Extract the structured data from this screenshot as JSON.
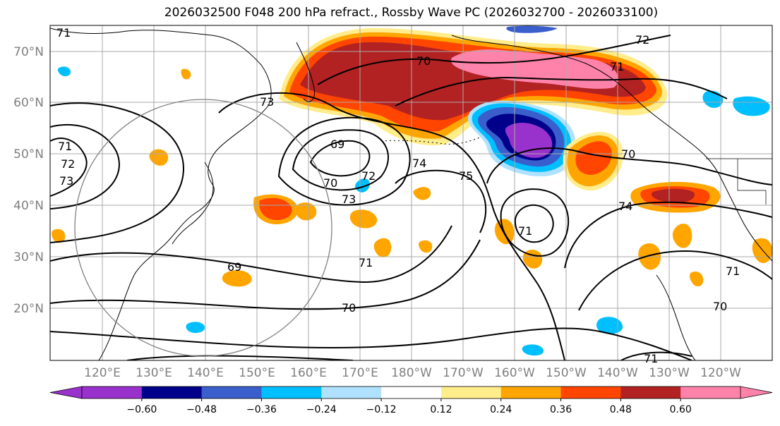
{
  "title": "2026032500 F048 200 hPa refract., Rossby Wave PC (2026032700 - 2026033100)",
  "latitude_labels": [
    "70°N",
    "60°N",
    "50°N",
    "40°N",
    "30°N",
    "20°N"
  ],
  "longitude_labels": [
    "120°E",
    "130°E",
    "140°E",
    "150°E",
    "160°E",
    "170°E",
    "180°W",
    "170°W",
    "160°W",
    "150°W",
    "140°W",
    "130°W",
    "120°W"
  ],
  "contour_labels": [
    "70",
    "71",
    "72",
    "73",
    "69",
    "70",
    "71",
    "72",
    "73",
    "74",
    "75",
    "71",
    "70",
    "74",
    "71",
    "69",
    "71",
    "70",
    "71",
    "70",
    "71",
    "72",
    "73"
  ],
  "colorbar": {
    "ticks": [
      "−0.60",
      "−0.48",
      "−0.36",
      "−0.24",
      "−0.12",
      "0.12",
      "0.24",
      "0.36",
      "0.48",
      "0.60"
    ],
    "colors": [
      "#9932cc",
      "#00008b",
      "#3a5fcd",
      "#00bfff",
      "#b0e2ff",
      "#ffffff",
      "#ffec8b",
      "#ffa500",
      "#ff4500",
      "#b22222",
      "#ff82ab"
    ]
  }
}
